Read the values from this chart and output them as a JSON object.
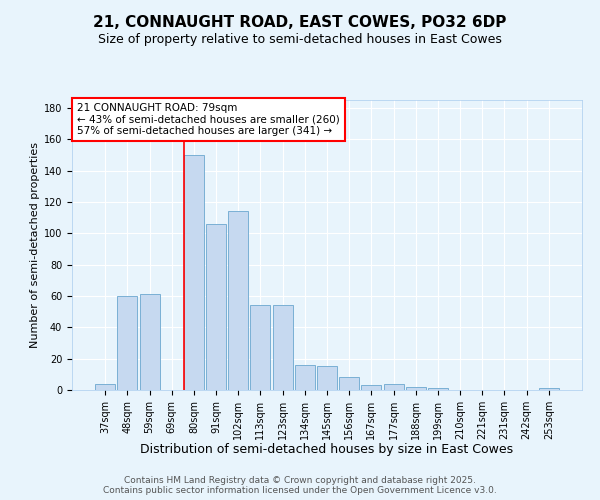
{
  "title": "21, CONNAUGHT ROAD, EAST COWES, PO32 6DP",
  "subtitle": "Size of property relative to semi-detached houses in East Cowes",
  "xlabel": "Distribution of semi-detached houses by size in East Cowes",
  "ylabel": "Number of semi-detached properties",
  "categories": [
    "37sqm",
    "48sqm",
    "59sqm",
    "69sqm",
    "80sqm",
    "91sqm",
    "102sqm",
    "113sqm",
    "123sqm",
    "134sqm",
    "145sqm",
    "156sqm",
    "167sqm",
    "177sqm",
    "188sqm",
    "199sqm",
    "210sqm",
    "221sqm",
    "231sqm",
    "242sqm",
    "253sqm"
  ],
  "values": [
    4,
    60,
    61,
    0,
    150,
    106,
    114,
    54,
    54,
    16,
    15,
    8,
    3,
    4,
    2,
    1,
    0,
    0,
    0,
    0,
    1
  ],
  "bar_color": "#c6d9f0",
  "bar_edge_color": "#7ab0d4",
  "vline_x": 3.55,
  "vline_color": "red",
  "annotation_lines": [
    "21 CONNAUGHT ROAD: 79sqm",
    "← 43% of semi-detached houses are smaller (260)",
    "57% of semi-detached houses are larger (341) →"
  ],
  "annotation_box_color": "white",
  "annotation_box_edge_color": "red",
  "ylim": [
    0,
    185
  ],
  "yticks": [
    0,
    20,
    40,
    60,
    80,
    100,
    120,
    140,
    160,
    180
  ],
  "background_color": "#e8f4fc",
  "footer_line1": "Contains HM Land Registry data © Crown copyright and database right 2025.",
  "footer_line2": "Contains public sector information licensed under the Open Government Licence v3.0.",
  "title_fontsize": 11,
  "subtitle_fontsize": 9,
  "xlabel_fontsize": 9,
  "ylabel_fontsize": 8,
  "tick_fontsize": 7,
  "annotation_fontsize": 7.5,
  "footer_fontsize": 6.5
}
